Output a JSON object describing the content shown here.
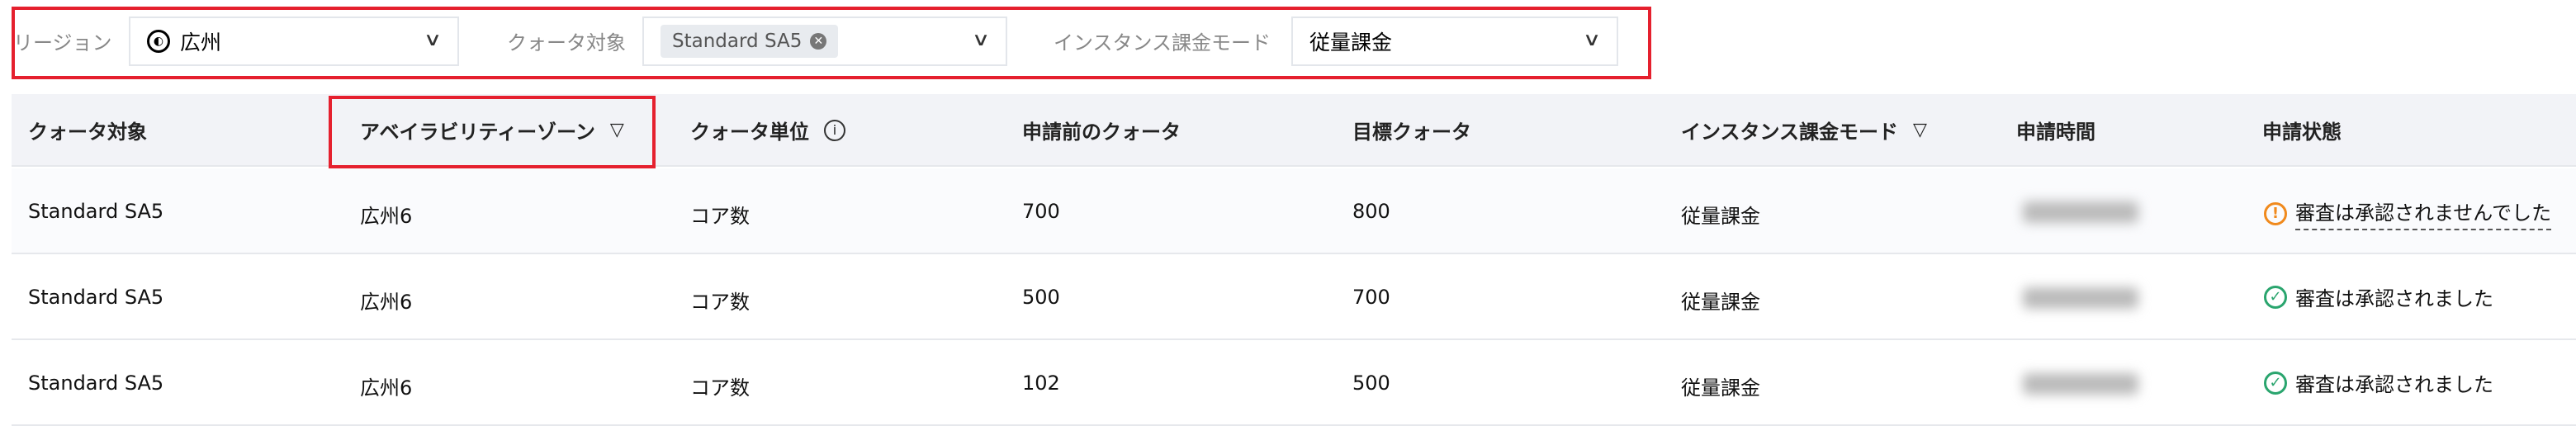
{
  "filters": {
    "region": {
      "label": "リージョン",
      "value": "広州",
      "icon": "globe-icon"
    },
    "quota_target": {
      "label": "クォータ対象",
      "tag": "Standard SA5"
    },
    "billing_mode": {
      "label": "インスタンス課金モード",
      "value": "従量課金"
    }
  },
  "table": {
    "headers": [
      "クォータ対象",
      "アベイラビリティーゾーン",
      "クォータ単位",
      "申請前のクォータ",
      "目標クォータ",
      "インスタンス課金モード",
      "申請時間",
      "申請状態"
    ],
    "rows": [
      {
        "target": "Standard SA5",
        "zone": "広州6",
        "unit": "コア数",
        "before": "700",
        "goal": "800",
        "mode": "従量課金",
        "status": "審査は承認されませんでした",
        "status_type": "warning"
      },
      {
        "target": "Standard SA5",
        "zone": "広州6",
        "unit": "コア数",
        "before": "500",
        "goal": "700",
        "mode": "従量課金",
        "status": "審査は承認されました",
        "status_type": "success"
      },
      {
        "target": "Standard SA5",
        "zone": "広州6",
        "unit": "コア数",
        "before": "102",
        "goal": "500",
        "mode": "従量課金",
        "status": "審査は承認されました",
        "status_type": "success"
      }
    ]
  },
  "colors": {
    "highlight": "#e5202e",
    "warning": "#f08a1d",
    "success": "#2aa56e"
  }
}
